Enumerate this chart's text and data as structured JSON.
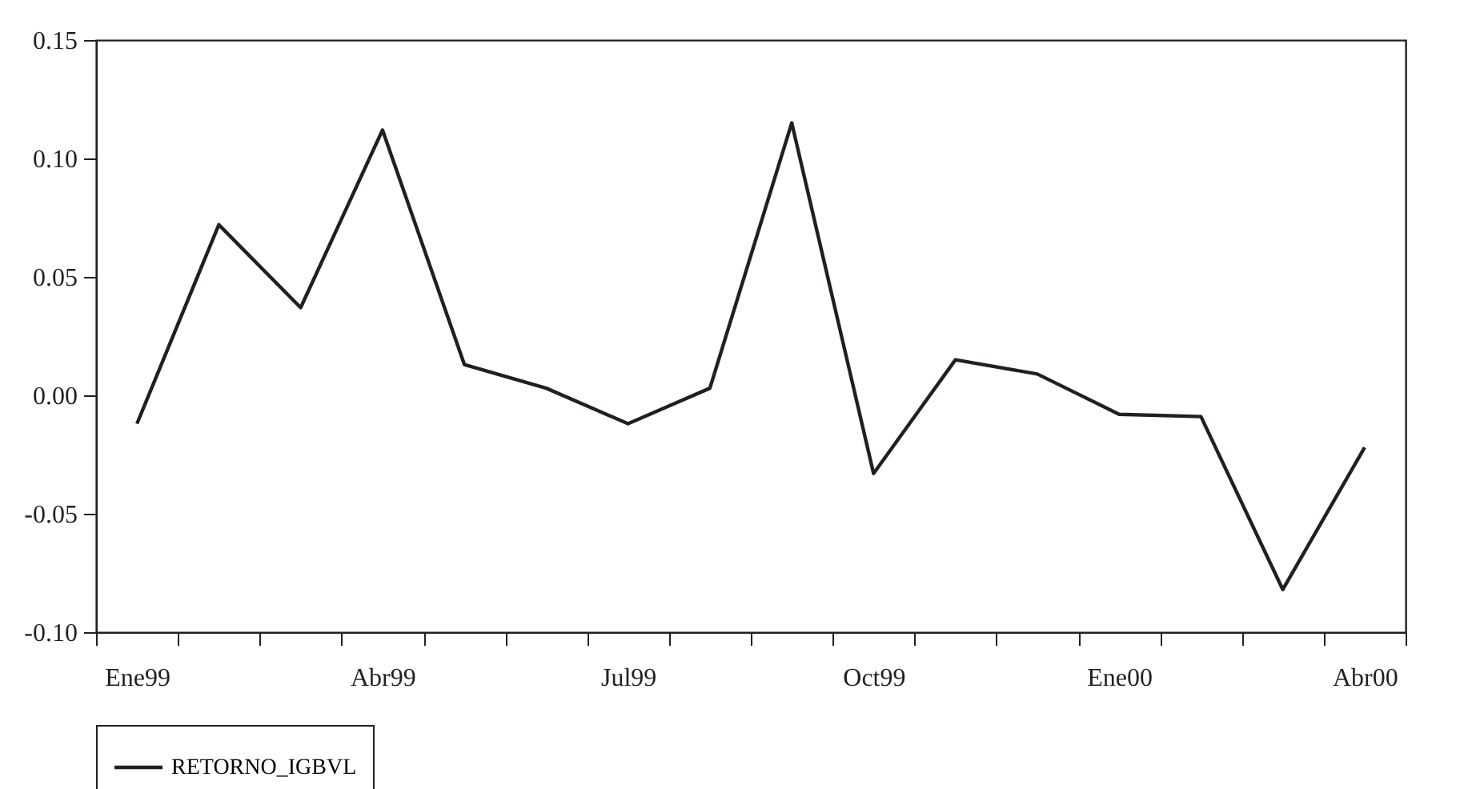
{
  "chart_data": {
    "type": "line",
    "categories": [
      "Ene99",
      null,
      null,
      "Abr99",
      null,
      null,
      "Jul99",
      null,
      null,
      "Oct99",
      null,
      null,
      "Ene00",
      null,
      null,
      "Abr00"
    ],
    "series": [
      {
        "name": "RETORNO_IGBVL",
        "color": "#231f20",
        "values": [
          -0.012,
          0.072,
          0.037,
          0.112,
          0.013,
          0.003,
          -0.012,
          0.003,
          0.115,
          -0.033,
          0.015,
          0.009,
          -0.008,
          -0.009,
          -0.082,
          -0.022
        ]
      }
    ],
    "ylim": [
      -0.1,
      0.15
    ],
    "yticks": [
      {
        "value": -0.1,
        "label": "-0.10"
      },
      {
        "value": -0.05,
        "label": "-0.05"
      },
      {
        "value": 0,
        "label": "0.00"
      },
      {
        "value": 0.05,
        "label": "0.05"
      },
      {
        "value": 0.1,
        "label": "0.10"
      },
      {
        "value": 0.15,
        "label": "0.15"
      }
    ],
    "grid": false,
    "legend": "bottom",
    "marker": "none",
    "line_style": "solid"
  }
}
